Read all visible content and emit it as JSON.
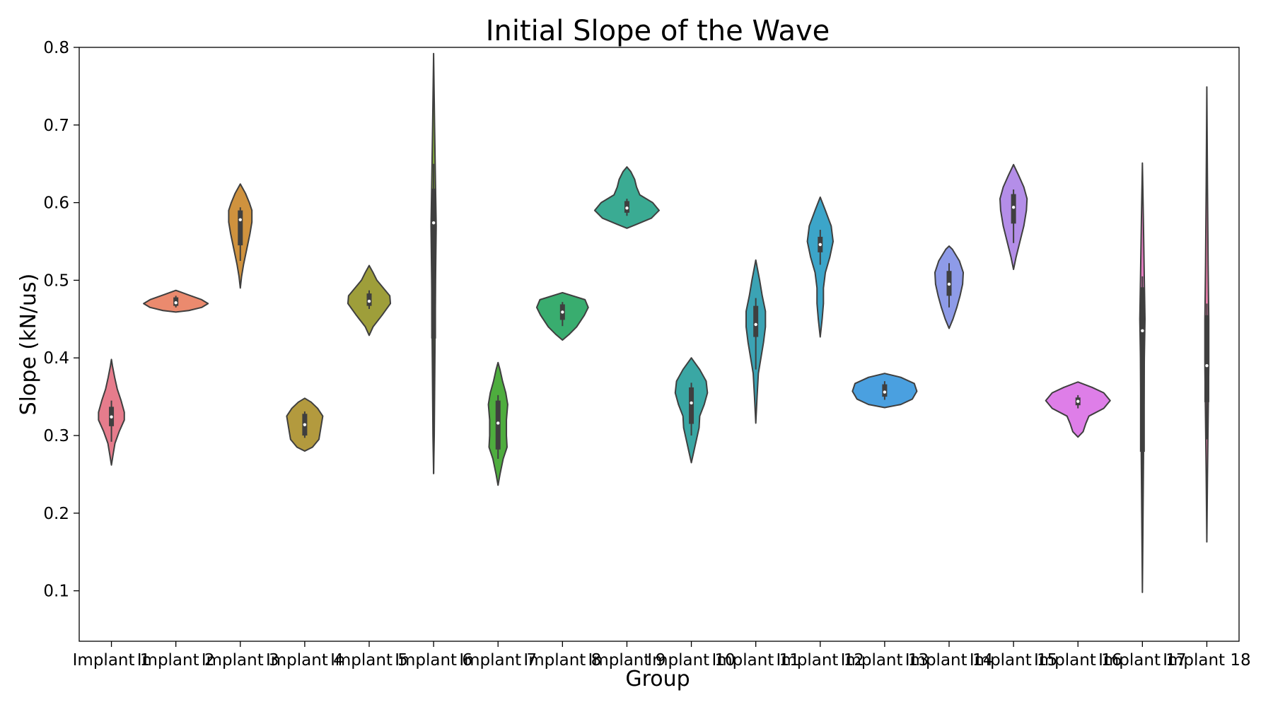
{
  "chart_data": {
    "type": "violin",
    "title": "Initial Slope of the Wave",
    "xlabel": "Group",
    "ylabel": "Slope (kN/us)",
    "ylim": [
      0.035,
      0.8
    ],
    "yticks": [
      0.1,
      0.2,
      0.3,
      0.4,
      0.5,
      0.6,
      0.7,
      0.8
    ],
    "ytick_labels": [
      "0.1",
      "0.2",
      "0.3",
      "0.4",
      "0.5",
      "0.6",
      "0.7",
      "0.8"
    ],
    "grid": false,
    "categories": [
      "Implant 1",
      "Implant 2",
      "Implant 3",
      "Implant 4",
      "Implant 5",
      "Implant 6",
      "Implant 7",
      "Implant 8",
      "Implant 9",
      "Implant 10",
      "Implant 11",
      "Implant 12",
      "Implant 13",
      "Implant 14",
      "Implant 15",
      "Implant 16",
      "Implant 17",
      "Implant 18"
    ],
    "series": [
      {
        "color": "#e67c8c",
        "min": 0.262,
        "max": 0.398,
        "q1": 0.312,
        "median": 0.324,
        "q3": 0.337,
        "whisker_low": 0.292,
        "whisker_high": 0.345,
        "profile": [
          [
            0.262,
            0.0
          ],
          [
            0.275,
            0.025
          ],
          [
            0.29,
            0.055
          ],
          [
            0.305,
            0.12
          ],
          [
            0.32,
            0.2
          ],
          [
            0.33,
            0.2
          ],
          [
            0.345,
            0.15
          ],
          [
            0.36,
            0.09
          ],
          [
            0.375,
            0.05
          ],
          [
            0.39,
            0.015
          ],
          [
            0.398,
            0.0
          ]
        ]
      },
      {
        "color": "#eb8a6e",
        "min": 0.459,
        "max": 0.487,
        "q1": 0.467,
        "median": 0.471,
        "q3": 0.478,
        "whisker_low": 0.465,
        "whisker_high": 0.48,
        "profile": [
          [
            0.459,
            0.0
          ],
          [
            0.461,
            0.2
          ],
          [
            0.465,
            0.4
          ],
          [
            0.47,
            0.5
          ],
          [
            0.475,
            0.4
          ],
          [
            0.481,
            0.2
          ],
          [
            0.487,
            0.0
          ]
        ]
      },
      {
        "color": "#cf923e",
        "min": 0.49,
        "max": 0.624,
        "q1": 0.545,
        "median": 0.578,
        "q3": 0.59,
        "whisker_low": 0.525,
        "whisker_high": 0.594,
        "profile": [
          [
            0.49,
            0.0
          ],
          [
            0.505,
            0.02
          ],
          [
            0.52,
            0.05
          ],
          [
            0.54,
            0.1
          ],
          [
            0.56,
            0.15
          ],
          [
            0.575,
            0.18
          ],
          [
            0.59,
            0.18
          ],
          [
            0.6,
            0.14
          ],
          [
            0.612,
            0.08
          ],
          [
            0.624,
            0.0
          ]
        ]
      },
      {
        "color": "#b39a3e",
        "min": 0.28,
        "max": 0.348,
        "q1": 0.3,
        "median": 0.314,
        "q3": 0.328,
        "whisker_low": 0.297,
        "whisker_high": 0.331,
        "profile": [
          [
            0.28,
            0.0
          ],
          [
            0.285,
            0.12
          ],
          [
            0.295,
            0.22
          ],
          [
            0.31,
            0.25
          ],
          [
            0.325,
            0.28
          ],
          [
            0.335,
            0.2
          ],
          [
            0.343,
            0.1
          ],
          [
            0.348,
            0.0
          ]
        ]
      },
      {
        "color": "#9e9e3a",
        "min": 0.429,
        "max": 0.519,
        "q1": 0.467,
        "median": 0.473,
        "q3": 0.483,
        "whisker_low": 0.463,
        "whisker_high": 0.487,
        "profile": [
          [
            0.429,
            0.0
          ],
          [
            0.44,
            0.06
          ],
          [
            0.455,
            0.2
          ],
          [
            0.47,
            0.33
          ],
          [
            0.48,
            0.32
          ],
          [
            0.49,
            0.22
          ],
          [
            0.5,
            0.12
          ],
          [
            0.51,
            0.06
          ],
          [
            0.519,
            0.0
          ]
        ]
      },
      {
        "color": "#7da33c",
        "min": 0.251,
        "max": 0.792,
        "q1": 0.425,
        "median": 0.574,
        "q3": 0.618,
        "whisker_low": 0.251,
        "whisker_high": 0.65,
        "profile": [
          [
            0.251,
            0.0
          ],
          [
            0.3,
            0.01
          ],
          [
            0.4,
            0.02
          ],
          [
            0.5,
            0.03
          ],
          [
            0.57,
            0.04
          ],
          [
            0.62,
            0.03
          ],
          [
            0.7,
            0.015
          ],
          [
            0.792,
            0.0
          ]
        ]
      },
      {
        "color": "#4ead3e",
        "min": 0.236,
        "max": 0.394,
        "q1": 0.282,
        "median": 0.316,
        "q3": 0.345,
        "whisker_low": 0.27,
        "whisker_high": 0.352,
        "profile": [
          [
            0.236,
            0.0
          ],
          [
            0.25,
            0.03
          ],
          [
            0.27,
            0.08
          ],
          [
            0.285,
            0.14
          ],
          [
            0.3,
            0.13
          ],
          [
            0.32,
            0.13
          ],
          [
            0.34,
            0.15
          ],
          [
            0.355,
            0.12
          ],
          [
            0.37,
            0.07
          ],
          [
            0.385,
            0.03
          ],
          [
            0.394,
            0.0
          ]
        ]
      },
      {
        "color": "#39ad6f",
        "min": 0.423,
        "max": 0.484,
        "q1": 0.449,
        "median": 0.459,
        "q3": 0.469,
        "whisker_low": 0.441,
        "whisker_high": 0.472,
        "profile": [
          [
            0.423,
            0.0
          ],
          [
            0.43,
            0.1
          ],
          [
            0.44,
            0.22
          ],
          [
            0.455,
            0.34
          ],
          [
            0.465,
            0.4
          ],
          [
            0.475,
            0.35
          ],
          [
            0.484,
            0.0
          ]
        ]
      },
      {
        "color": "#3aab93",
        "min": 0.567,
        "max": 0.646,
        "q1": 0.587,
        "median": 0.593,
        "q3": 0.602,
        "whisker_low": 0.583,
        "whisker_high": 0.605,
        "profile": [
          [
            0.567,
            0.0
          ],
          [
            0.572,
            0.15
          ],
          [
            0.58,
            0.38
          ],
          [
            0.59,
            0.5
          ],
          [
            0.6,
            0.4
          ],
          [
            0.61,
            0.2
          ],
          [
            0.62,
            0.15
          ],
          [
            0.63,
            0.12
          ],
          [
            0.64,
            0.06
          ],
          [
            0.646,
            0.0
          ]
        ]
      },
      {
        "color": "#3aa7a4",
        "min": 0.265,
        "max": 0.4,
        "q1": 0.315,
        "median": 0.342,
        "q3": 0.362,
        "whisker_low": 0.3,
        "whisker_high": 0.368,
        "profile": [
          [
            0.265,
            0.0
          ],
          [
            0.28,
            0.04
          ],
          [
            0.295,
            0.08
          ],
          [
            0.31,
            0.12
          ],
          [
            0.325,
            0.13
          ],
          [
            0.34,
            0.2
          ],
          [
            0.355,
            0.25
          ],
          [
            0.37,
            0.23
          ],
          [
            0.385,
            0.13
          ],
          [
            0.4,
            0.0
          ]
        ]
      },
      {
        "color": "#3ba3b4",
        "min": 0.316,
        "max": 0.526,
        "q1": 0.427,
        "median": 0.443,
        "q3": 0.467,
        "whisker_low": 0.385,
        "whisker_high": 0.477,
        "profile": [
          [
            0.316,
            0.0
          ],
          [
            0.35,
            0.02
          ],
          [
            0.38,
            0.04
          ],
          [
            0.4,
            0.08
          ],
          [
            0.42,
            0.12
          ],
          [
            0.44,
            0.15
          ],
          [
            0.46,
            0.15
          ],
          [
            0.48,
            0.1
          ],
          [
            0.5,
            0.06
          ],
          [
            0.526,
            0.0
          ]
        ]
      },
      {
        "color": "#3ca5c9",
        "min": 0.427,
        "max": 0.607,
        "q1": 0.536,
        "median": 0.546,
        "q3": 0.556,
        "whisker_low": 0.52,
        "whisker_high": 0.565,
        "profile": [
          [
            0.427,
            0.0
          ],
          [
            0.45,
            0.03
          ],
          [
            0.47,
            0.05
          ],
          [
            0.49,
            0.05
          ],
          [
            0.51,
            0.08
          ],
          [
            0.53,
            0.15
          ],
          [
            0.55,
            0.2
          ],
          [
            0.57,
            0.17
          ],
          [
            0.59,
            0.08
          ],
          [
            0.607,
            0.0
          ]
        ]
      },
      {
        "color": "#4aa0e0",
        "min": 0.336,
        "max": 0.38,
        "q1": 0.35,
        "median": 0.356,
        "q3": 0.366,
        "whisker_low": 0.346,
        "whisker_high": 0.37,
        "profile": [
          [
            0.336,
            0.0
          ],
          [
            0.34,
            0.25
          ],
          [
            0.347,
            0.43
          ],
          [
            0.357,
            0.5
          ],
          [
            0.367,
            0.46
          ],
          [
            0.375,
            0.25
          ],
          [
            0.38,
            0.0
          ]
        ]
      },
      {
        "color": "#8e9be8",
        "min": 0.438,
        "max": 0.544,
        "q1": 0.48,
        "median": 0.495,
        "q3": 0.512,
        "whisker_low": 0.465,
        "whisker_high": 0.522,
        "profile": [
          [
            0.438,
            0.0
          ],
          [
            0.45,
            0.06
          ],
          [
            0.465,
            0.12
          ],
          [
            0.48,
            0.17
          ],
          [
            0.495,
            0.21
          ],
          [
            0.51,
            0.22
          ],
          [
            0.525,
            0.16
          ],
          [
            0.54,
            0.05
          ],
          [
            0.544,
            0.0
          ]
        ]
      },
      {
        "color": "#b48ee8",
        "min": 0.514,
        "max": 0.649,
        "q1": 0.573,
        "median": 0.594,
        "q3": 0.611,
        "whisker_low": 0.548,
        "whisker_high": 0.617,
        "profile": [
          [
            0.514,
            0.0
          ],
          [
            0.53,
            0.04
          ],
          [
            0.55,
            0.1
          ],
          [
            0.57,
            0.16
          ],
          [
            0.59,
            0.2
          ],
          [
            0.605,
            0.21
          ],
          [
            0.62,
            0.16
          ],
          [
            0.635,
            0.08
          ],
          [
            0.649,
            0.0
          ]
        ]
      },
      {
        "color": "#de7ee8",
        "min": 0.298,
        "max": 0.369,
        "q1": 0.339,
        "median": 0.344,
        "q3": 0.349,
        "whisker_low": 0.335,
        "whisker_high": 0.352,
        "profile": [
          [
            0.298,
            0.0
          ],
          [
            0.305,
            0.08
          ],
          [
            0.315,
            0.12
          ],
          [
            0.325,
            0.17
          ],
          [
            0.335,
            0.4
          ],
          [
            0.345,
            0.5
          ],
          [
            0.355,
            0.4
          ],
          [
            0.362,
            0.22
          ],
          [
            0.369,
            0.0
          ]
        ]
      },
      {
        "color": "#e67cc2",
        "min": 0.098,
        "max": 0.651,
        "q1": 0.279,
        "median": 0.435,
        "q3": 0.491,
        "whisker_low": 0.15,
        "whisker_high": 0.505,
        "profile": [
          [
            0.098,
            0.0
          ],
          [
            0.2,
            0.01
          ],
          [
            0.3,
            0.02
          ],
          [
            0.4,
            0.03
          ],
          [
            0.45,
            0.04
          ],
          [
            0.5,
            0.03
          ],
          [
            0.58,
            0.015
          ],
          [
            0.651,
            0.0
          ]
        ]
      },
      {
        "color": "#e67ca8",
        "min": 0.163,
        "max": 0.749,
        "q1": 0.343,
        "median": 0.39,
        "q3": 0.455,
        "whisker_low": 0.295,
        "whisker_high": 0.47,
        "profile": [
          [
            0.163,
            0.0
          ],
          [
            0.25,
            0.01
          ],
          [
            0.32,
            0.02
          ],
          [
            0.39,
            0.03
          ],
          [
            0.45,
            0.03
          ],
          [
            0.52,
            0.02
          ],
          [
            0.62,
            0.01
          ],
          [
            0.749,
            0.0
          ]
        ]
      }
    ]
  }
}
